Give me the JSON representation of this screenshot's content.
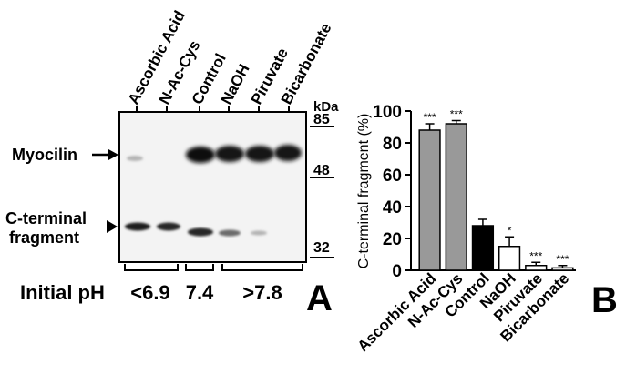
{
  "blot": {
    "lanes": [
      "Ascorbic Acid",
      "N-Ac-Cys",
      "Control",
      "NaOH",
      "Piruvate",
      "Bicarbonate"
    ],
    "kda_label": "kDa",
    "markers": [
      "85",
      "48",
      "32"
    ],
    "row_labels": {
      "myocilin": "Myocilin",
      "cterm_line1": "C-terminal",
      "cterm_line2": "fragment"
    },
    "ph": {
      "label": "Initial pH",
      "groups": [
        "<6.9",
        "7.4",
        ">7.8"
      ]
    },
    "panel_letter": "A"
  },
  "chart_panel_letter": "B",
  "chart_data": {
    "type": "bar",
    "categories": [
      "Ascorbic Acid",
      "N-Ac-Cys",
      "Control",
      "NaOH",
      "Piruvate",
      "Bicarbonate"
    ],
    "values": [
      88,
      92,
      28,
      15,
      3,
      1.5
    ],
    "errors": [
      4,
      2,
      4,
      6,
      2,
      1.5
    ],
    "significance": [
      "***",
      "***",
      "",
      "*",
      "***",
      "***"
    ],
    "bar_colors": [
      "#999999",
      "#999999",
      "#000000",
      "#ffffff",
      "#ffffff",
      "#ffffff"
    ],
    "ylabel": "C-terminal fragment (%)",
    "ylim": [
      0,
      100
    ],
    "yticks": [
      "0",
      "20",
      "40",
      "60",
      "80",
      "100"
    ],
    "grid": false
  }
}
